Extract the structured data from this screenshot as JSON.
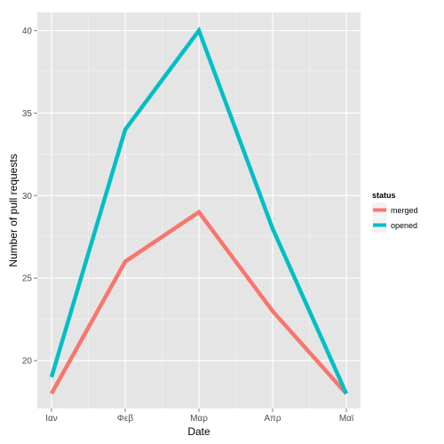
{
  "chart_data": {
    "type": "line",
    "categories": [
      "Ιαν",
      "Φεβ",
      "Μαρ",
      "Απρ",
      "Μαϊ"
    ],
    "series": [
      {
        "name": "merged",
        "values": [
          18,
          26,
          29,
          23,
          18
        ],
        "color": "#F8766D"
      },
      {
        "name": "opened",
        "values": [
          19,
          34,
          40,
          28,
          18
        ],
        "color": "#00BFC4"
      }
    ],
    "xlabel": "Date",
    "ylabel": "Number of pull requests",
    "ylim": [
      17.1,
      41.1
    ],
    "yticks": [
      20,
      25,
      30,
      35,
      40
    ],
    "grid": true,
    "legend": {
      "title": "status",
      "position": "right"
    },
    "panel_color": "#E5E5E5",
    "grid_color": "#FFFFFF"
  }
}
